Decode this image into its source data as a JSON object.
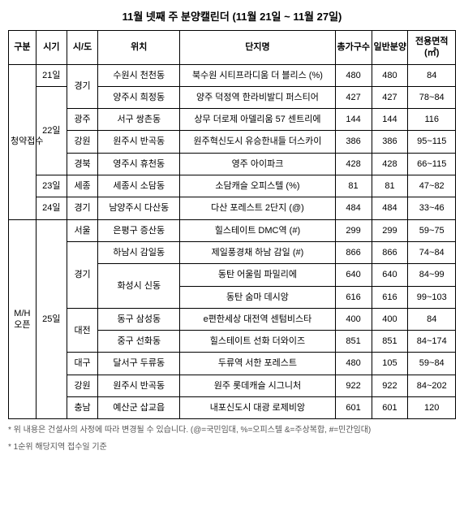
{
  "title": "11월 넷째 주 분양캘린더 (11월 21일 ~ 11월 27일)",
  "headers": {
    "gubun": "구분",
    "sigi": "시기",
    "sido": "시/도",
    "location": "위치",
    "complex": "단지명",
    "total": "총가구수",
    "general": "일반분양",
    "area": "전용면적(㎡)"
  },
  "groups": [
    {
      "gubun": "청약접수",
      "blocks": [
        {
          "sigi": "21일",
          "regions": [
            {
              "sido": "경기",
              "rows": [
                {
                  "location": "수원시 천천동",
                  "complex": "북수원 시티프라디움 더 블리스 (%)",
                  "total": "480",
                  "general": "480",
                  "area": "84"
                }
              ],
              "sido_rowspan_extra": true
            }
          ]
        },
        {
          "sigi": "22일",
          "regions": [
            {
              "sido": "",
              "rows": [
                {
                  "location": "양주시 희정동",
                  "complex": "양주 덕정역 한라비발디 퍼스티어",
                  "total": "427",
                  "general": "427",
                  "area": "78~84"
                }
              ]
            },
            {
              "sido": "광주",
              "rows": [
                {
                  "location": "서구 쌍촌동",
                  "complex": "상무 더로제 아델리움 57 센트리에",
                  "total": "144",
                  "general": "144",
                  "area": "116"
                }
              ]
            },
            {
              "sido": "강원",
              "rows": [
                {
                  "location": "원주시 반곡동",
                  "complex": "원주혁신도시 유승한내들 더스카이",
                  "total": "386",
                  "general": "386",
                  "area": "95~115"
                }
              ]
            },
            {
              "sido": "경북",
              "rows": [
                {
                  "location": "영주시 휴천동",
                  "complex": "영주 아이파크",
                  "total": "428",
                  "general": "428",
                  "area": "66~115"
                }
              ]
            }
          ]
        },
        {
          "sigi": "23일",
          "regions": [
            {
              "sido": "세종",
              "rows": [
                {
                  "location": "세종시 소담동",
                  "complex": "소담캐슬 오피스텔 (%)",
                  "total": "81",
                  "general": "81",
                  "area": "47~82"
                }
              ]
            }
          ]
        },
        {
          "sigi": "24일",
          "regions": [
            {
              "sido": "경기",
              "rows": [
                {
                  "location": "남양주시 다산동",
                  "complex": "다산 포레스트 2단지 (@)",
                  "total": "484",
                  "general": "484",
                  "area": "33~46"
                }
              ]
            }
          ]
        }
      ]
    },
    {
      "gubun": "M/H 오픈",
      "blocks": [
        {
          "sigi": "25일",
          "regions": [
            {
              "sido": "서울",
              "rows": [
                {
                  "location": "은평구 증산동",
                  "complex": "힐스테이트 DMC역 (#)",
                  "total": "299",
                  "general": "299",
                  "area": "59~75"
                }
              ]
            },
            {
              "sido": "경기",
              "rows": [
                {
                  "location": "하남시 감일동",
                  "complex": "제일풍경채 하남 감일 (#)",
                  "total": "866",
                  "general": "866",
                  "area": "74~84"
                },
                {
                  "location": "화성시 신동",
                  "complex": "동탄 어울림 파밀리에",
                  "total": "640",
                  "general": "640",
                  "area": "84~99",
                  "loc_rowspan": 2
                },
                {
                  "location": "",
                  "complex": "동탄 숨마 데시앙",
                  "total": "616",
                  "general": "616",
                  "area": "99~103",
                  "skip_loc": true
                }
              ]
            },
            {
              "sido": "대전",
              "rows": [
                {
                  "location": "동구 삼성동",
                  "complex": "e편한세상 대전역 센텀비스타",
                  "total": "400",
                  "general": "400",
                  "area": "84"
                },
                {
                  "location": "중구 선화동",
                  "complex": "힐스테이트 선화 더와이즈",
                  "total": "851",
                  "general": "851",
                  "area": "84~174"
                }
              ]
            },
            {
              "sido": "대구",
              "rows": [
                {
                  "location": "달서구 두류동",
                  "complex": "두류역 서한 포레스트",
                  "total": "480",
                  "general": "105",
                  "area": "59~84"
                }
              ]
            },
            {
              "sido": "강원",
              "rows": [
                {
                  "location": "원주시 반곡동",
                  "complex": "원주 롯데캐슬 시그니처",
                  "total": "922",
                  "general": "922",
                  "area": "84~202"
                }
              ]
            },
            {
              "sido": "충남",
              "rows": [
                {
                  "location": "예산군 삽교읍",
                  "complex": "내포신도시 대광 로제비앙",
                  "total": "601",
                  "general": "601",
                  "area": "120"
                }
              ]
            }
          ]
        }
      ]
    }
  ],
  "footnotes": [
    "* 위 내용은 건설사의 사정에 따라 변경될 수 있습니다. (@=국민임대, %=오피스텔 &=주상복합, #=민간임대)",
    "* 1순위 해당지역 접수일 기준"
  ]
}
